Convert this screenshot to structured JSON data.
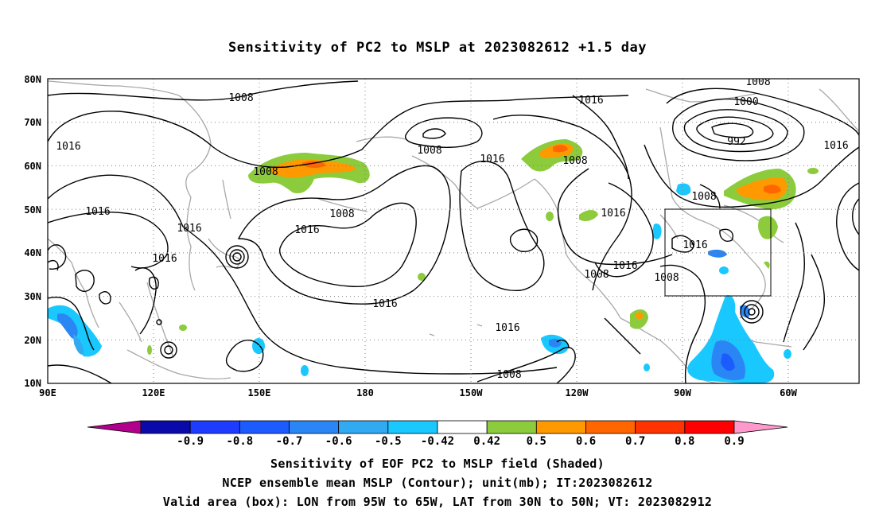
{
  "title": "Sensitivity of PC2 to MSLP at 2023082612 +1.5 day",
  "map": {
    "lat_labels": [
      "80N",
      "70N",
      "60N",
      "50N",
      "40N",
      "30N",
      "20N",
      "10N"
    ],
    "lon_labels": [
      "90E",
      "120E",
      "150E",
      "180",
      "150W",
      "120W",
      "90W",
      "60W"
    ],
    "domain": {
      "lon_range": [
        "90E",
        "35W"
      ],
      "lat_range": [
        "10N",
        "80N"
      ]
    },
    "coast_color": "#a8a8a8",
    "contour_color": "#000000",
    "grid": "dotted",
    "isobar_labels": [
      {
        "text": "1008"
      },
      {
        "text": "1016"
      },
      {
        "text": "1016"
      },
      {
        "text": "1008"
      },
      {
        "text": "1016"
      },
      {
        "text": "1016"
      },
      {
        "text": "1008"
      },
      {
        "text": "1016"
      },
      {
        "text": "1008"
      },
      {
        "text": "1016"
      },
      {
        "text": "1016"
      },
      {
        "text": "1008"
      },
      {
        "text": "1008"
      },
      {
        "text": "1000"
      },
      {
        "text": "992"
      },
      {
        "text": "1016"
      },
      {
        "text": "1008"
      },
      {
        "text": "1016"
      },
      {
        "text": "1016"
      },
      {
        "text": "1016"
      },
      {
        "text": "1008"
      },
      {
        "text": "1008"
      },
      {
        "text": "1016"
      },
      {
        "text": "1016"
      },
      {
        "text": "1008"
      }
    ]
  },
  "colorbar": {
    "labels": [
      "-0.9",
      "-0.8",
      "-0.7",
      "-0.6",
      "-0.5",
      "-0.42",
      "0.42",
      "0.5",
      "0.6",
      "0.7",
      "0.8",
      "0.9"
    ],
    "colors": [
      "#b0008c",
      "#0a0aaa",
      "#1e3cff",
      "#1c5cff",
      "#2a86f5",
      "#31aaf2",
      "#19c8ff",
      "#ffffff",
      "#8ccc3c",
      "#ff9900",
      "#ff6600",
      "#ff3300",
      "#ff0000",
      "#ff99cc"
    ]
  },
  "captions": {
    "line1": "Sensitivity of EOF PC2 to MSLP field (Shaded)",
    "line2": "NCEP ensemble mean MSLP (Contour); unit(mb); IT:2023082612",
    "line3": "Valid area (box): LON from 95W to 65W, LAT from 30N to 50N; VT: 2023082912"
  }
}
